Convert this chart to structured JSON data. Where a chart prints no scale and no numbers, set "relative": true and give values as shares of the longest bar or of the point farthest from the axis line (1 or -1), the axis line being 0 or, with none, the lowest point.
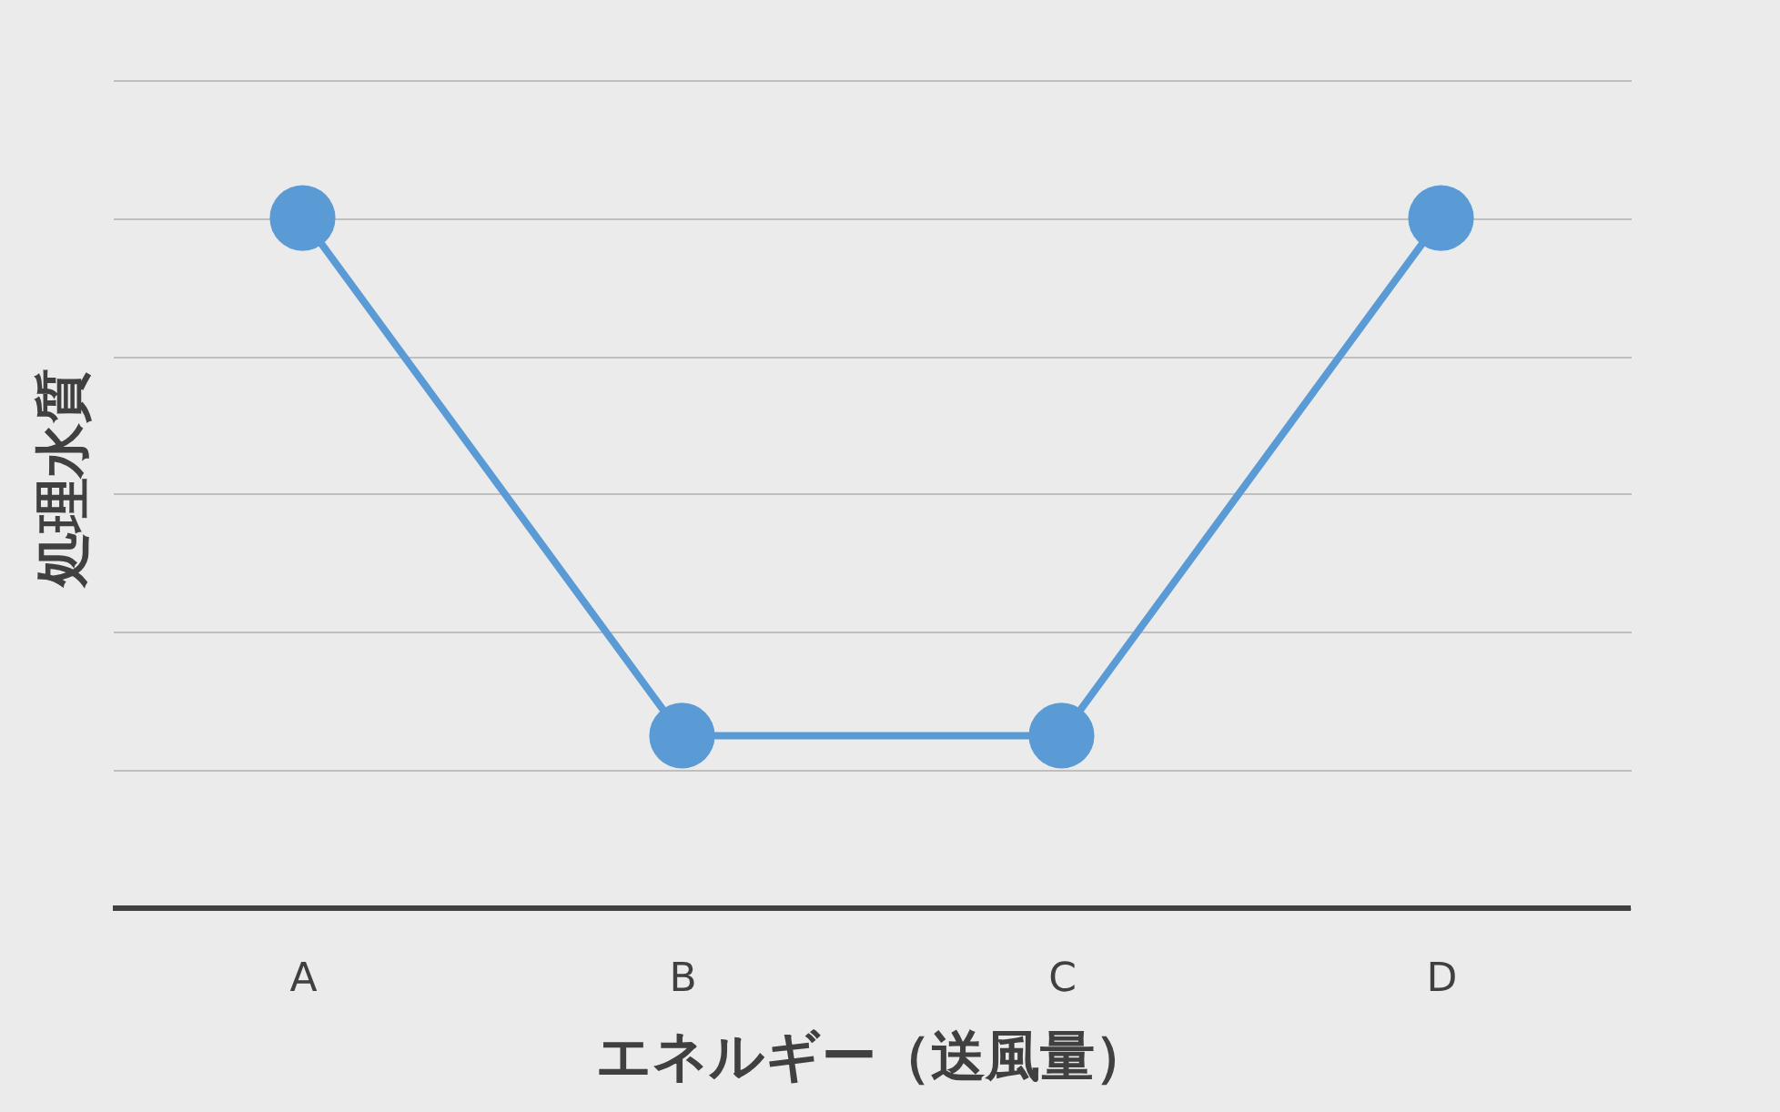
{
  "chart_data": {
    "type": "line",
    "xlabel": "エネルギー（送風量）",
    "ylabel": "処理水質",
    "categories": [
      "A",
      "B",
      "C",
      "D"
    ],
    "series": [
      {
        "color": "#5b9bd5",
        "values": [
          1,
          0.25,
          0.25,
          1
        ]
      }
    ],
    "relative": true,
    "grid": "y",
    "marker": "circle",
    "line_style": "solid"
  }
}
